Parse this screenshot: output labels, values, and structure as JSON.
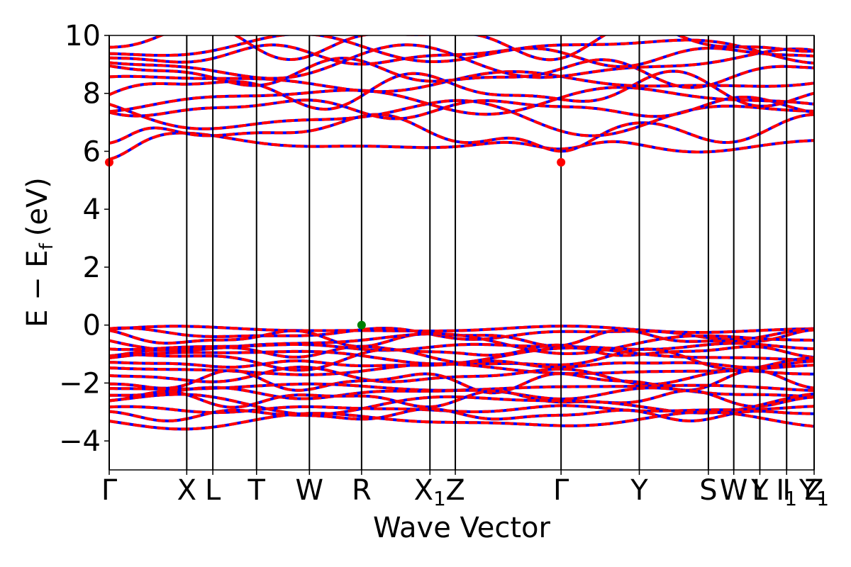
{
  "chart_data": {
    "type": "line",
    "xlabel": "Wave Vector",
    "ylabel_main": "E − E",
    "ylabel_sub": "f",
    "ylabel_unit": "(eV)",
    "ylim": [
      -5,
      10
    ],
    "yticks": [
      -4,
      -2,
      0,
      2,
      4,
      6,
      8,
      10
    ],
    "ytick_labels": [
      "−4",
      "−2",
      "0",
      "2",
      "4",
      "6",
      "8",
      "10"
    ],
    "kpoints": [
      {
        "label": "Γ",
        "sub": "",
        "x": 0.0
      },
      {
        "label": "X",
        "sub": "",
        "x": 0.11
      },
      {
        "label": "L",
        "sub": "",
        "x": 0.147
      },
      {
        "label": "T",
        "sub": "",
        "x": 0.209
      },
      {
        "label": "W",
        "sub": "",
        "x": 0.284
      },
      {
        "label": "R",
        "sub": "",
        "x": 0.358
      },
      {
        "label": "X",
        "sub": "1",
        "x": 0.455
      },
      {
        "label": "Z",
        "sub": "",
        "x": 0.491
      },
      {
        "label": "Γ",
        "sub": "",
        "x": 0.641
      },
      {
        "label": "Y",
        "sub": "",
        "x": 0.752
      },
      {
        "label": "S",
        "sub": "",
        "x": 0.85
      },
      {
        "label": "W",
        "sub": "",
        "x": 0.886
      },
      {
        "label": "Y",
        "sub": "",
        "x": 0.923
      },
      {
        "label": "L",
        "sub": "",
        "x": 0.923
      },
      {
        "label": "I",
        "sub": "",
        "x": 0.961
      },
      {
        "label": "I",
        "sub": "1",
        "x": 0.961
      },
      {
        "label": "Z",
        "sub": "",
        "x": 1.0
      },
      {
        "label": "Y",
        "sub": "1",
        "x": 1.0
      }
    ],
    "series": [
      {
        "color": "#0000ff",
        "style": "solid"
      },
      {
        "color": "#ff0000",
        "style": "dashed"
      }
    ],
    "cbm": {
      "x": [
        0.0,
        0.641
      ],
      "y": 5.62,
      "color": "#ff0000"
    },
    "vbm": {
      "x": 0.358,
      "y": 0.0,
      "color": "#008000"
    },
    "valence_band_range": [
      -3.4,
      0.0
    ],
    "conduction_band_range": [
      5.62,
      10.0
    ]
  }
}
